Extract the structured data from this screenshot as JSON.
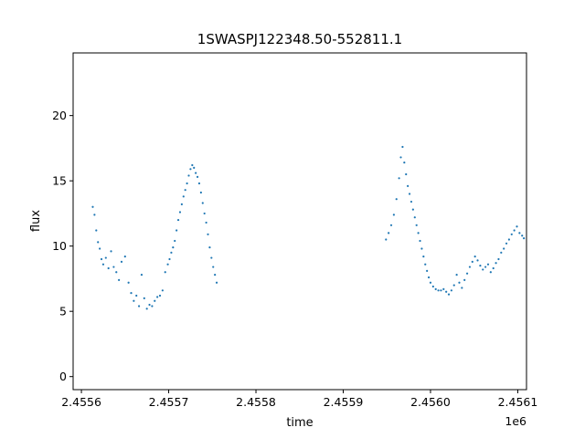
{
  "chart_data": {
    "type": "scatter",
    "title": "1SWASPJ122348.50-552811.1",
    "xlabel": "time",
    "ylabel": "flux",
    "x_offset_label": "1e6",
    "xlim": [
      2455590.5,
      2456110.0
    ],
    "ylim": [
      -1.0,
      24.8
    ],
    "x_ticks": [
      2455600,
      2455700,
      2455800,
      2455900,
      2456000,
      2456100
    ],
    "x_tick_labels": [
      "2.4556",
      "2.4557",
      "2.4558",
      "2.4559",
      "2.4560",
      "2.4561"
    ],
    "y_ticks": [
      0,
      5,
      10,
      15,
      20
    ],
    "y_tick_labels": [
      "0",
      "5",
      "10",
      "15",
      "20"
    ],
    "grid": false,
    "point_color": "#1f77b4",
    "series": [
      {
        "name": "",
        "x": [
          2455613,
          2455615,
          2455617,
          2455619,
          2455621,
          2455623,
          2455625,
          2455628,
          2455631,
          2455634,
          2455637,
          2455640,
          2455643,
          2455646,
          2455650,
          2455654,
          2455657,
          2455660,
          2455663,
          2455666,
          2455669,
          2455672,
          2455675,
          2455678,
          2455681,
          2455684,
          2455687,
          2455690,
          2455693,
          2455696,
          2455699,
          2455701,
          2455703,
          2455705,
          2455707,
          2455709,
          2455711,
          2455713,
          2455715,
          2455717,
          2455719,
          2455721,
          2455723,
          2455725,
          2455727,
          2455729,
          2455731,
          2455733,
          2455735,
          2455737,
          2455739,
          2455741,
          2455743,
          2455745,
          2455747,
          2455749,
          2455751,
          2455753,
          2455755,
          2455949,
          2455952,
          2455955,
          2455958,
          2455961,
          2455964,
          2455966,
          2455968,
          2455970,
          2455972,
          2455974,
          2455976,
          2455978,
          2455980,
          2455982,
          2455984,
          2455986,
          2455988,
          2455990,
          2455992,
          2455994,
          2455996,
          2455998,
          2456000,
          2456003,
          2456006,
          2456009,
          2456012,
          2456015,
          2456018,
          2456021,
          2456024,
          2456027,
          2456030,
          2456033,
          2456036,
          2456039,
          2456042,
          2456045,
          2456048,
          2456051,
          2456054,
          2456057,
          2456060,
          2456063,
          2456066,
          2456069,
          2456072,
          2456075,
          2456078,
          2456081,
          2456084,
          2456087,
          2456090,
          2456093,
          2456096,
          2456099,
          2456102,
          2456105,
          2456107
        ],
        "y": [
          13.0,
          12.4,
          11.2,
          10.3,
          9.8,
          9.0,
          8.6,
          9.1,
          8.3,
          9.6,
          8.4,
          8.0,
          7.4,
          8.8,
          9.2,
          7.2,
          6.4,
          5.8,
          6.2,
          5.4,
          7.8,
          6.0,
          5.2,
          5.5,
          5.4,
          5.8,
          6.1,
          6.2,
          6.6,
          8.0,
          8.6,
          9.0,
          9.5,
          9.9,
          10.4,
          11.2,
          12.0,
          12.6,
          13.2,
          13.8,
          14.3,
          14.8,
          15.4,
          15.9,
          16.2,
          16.0,
          15.6,
          15.3,
          14.8,
          14.1,
          13.3,
          12.5,
          11.8,
          10.9,
          9.9,
          9.1,
          8.4,
          7.8,
          7.2,
          10.5,
          11.0,
          11.6,
          12.4,
          13.6,
          15.2,
          16.8,
          17.6,
          16.4,
          15.5,
          14.6,
          14.0,
          13.4,
          12.8,
          12.2,
          11.6,
          11.0,
          10.4,
          9.8,
          9.2,
          8.6,
          8.1,
          7.6,
          7.2,
          6.9,
          6.7,
          6.6,
          6.6,
          6.7,
          6.5,
          6.3,
          6.6,
          7.0,
          7.8,
          7.2,
          6.8,
          7.4,
          7.9,
          8.4,
          8.8,
          9.2,
          8.9,
          8.5,
          8.2,
          8.4,
          8.6,
          8.0,
          8.3,
          8.7,
          9.0,
          9.5,
          9.8,
          10.2,
          10.5,
          10.9,
          11.2,
          11.5,
          11.0,
          10.8,
          10.6
        ]
      }
    ]
  }
}
